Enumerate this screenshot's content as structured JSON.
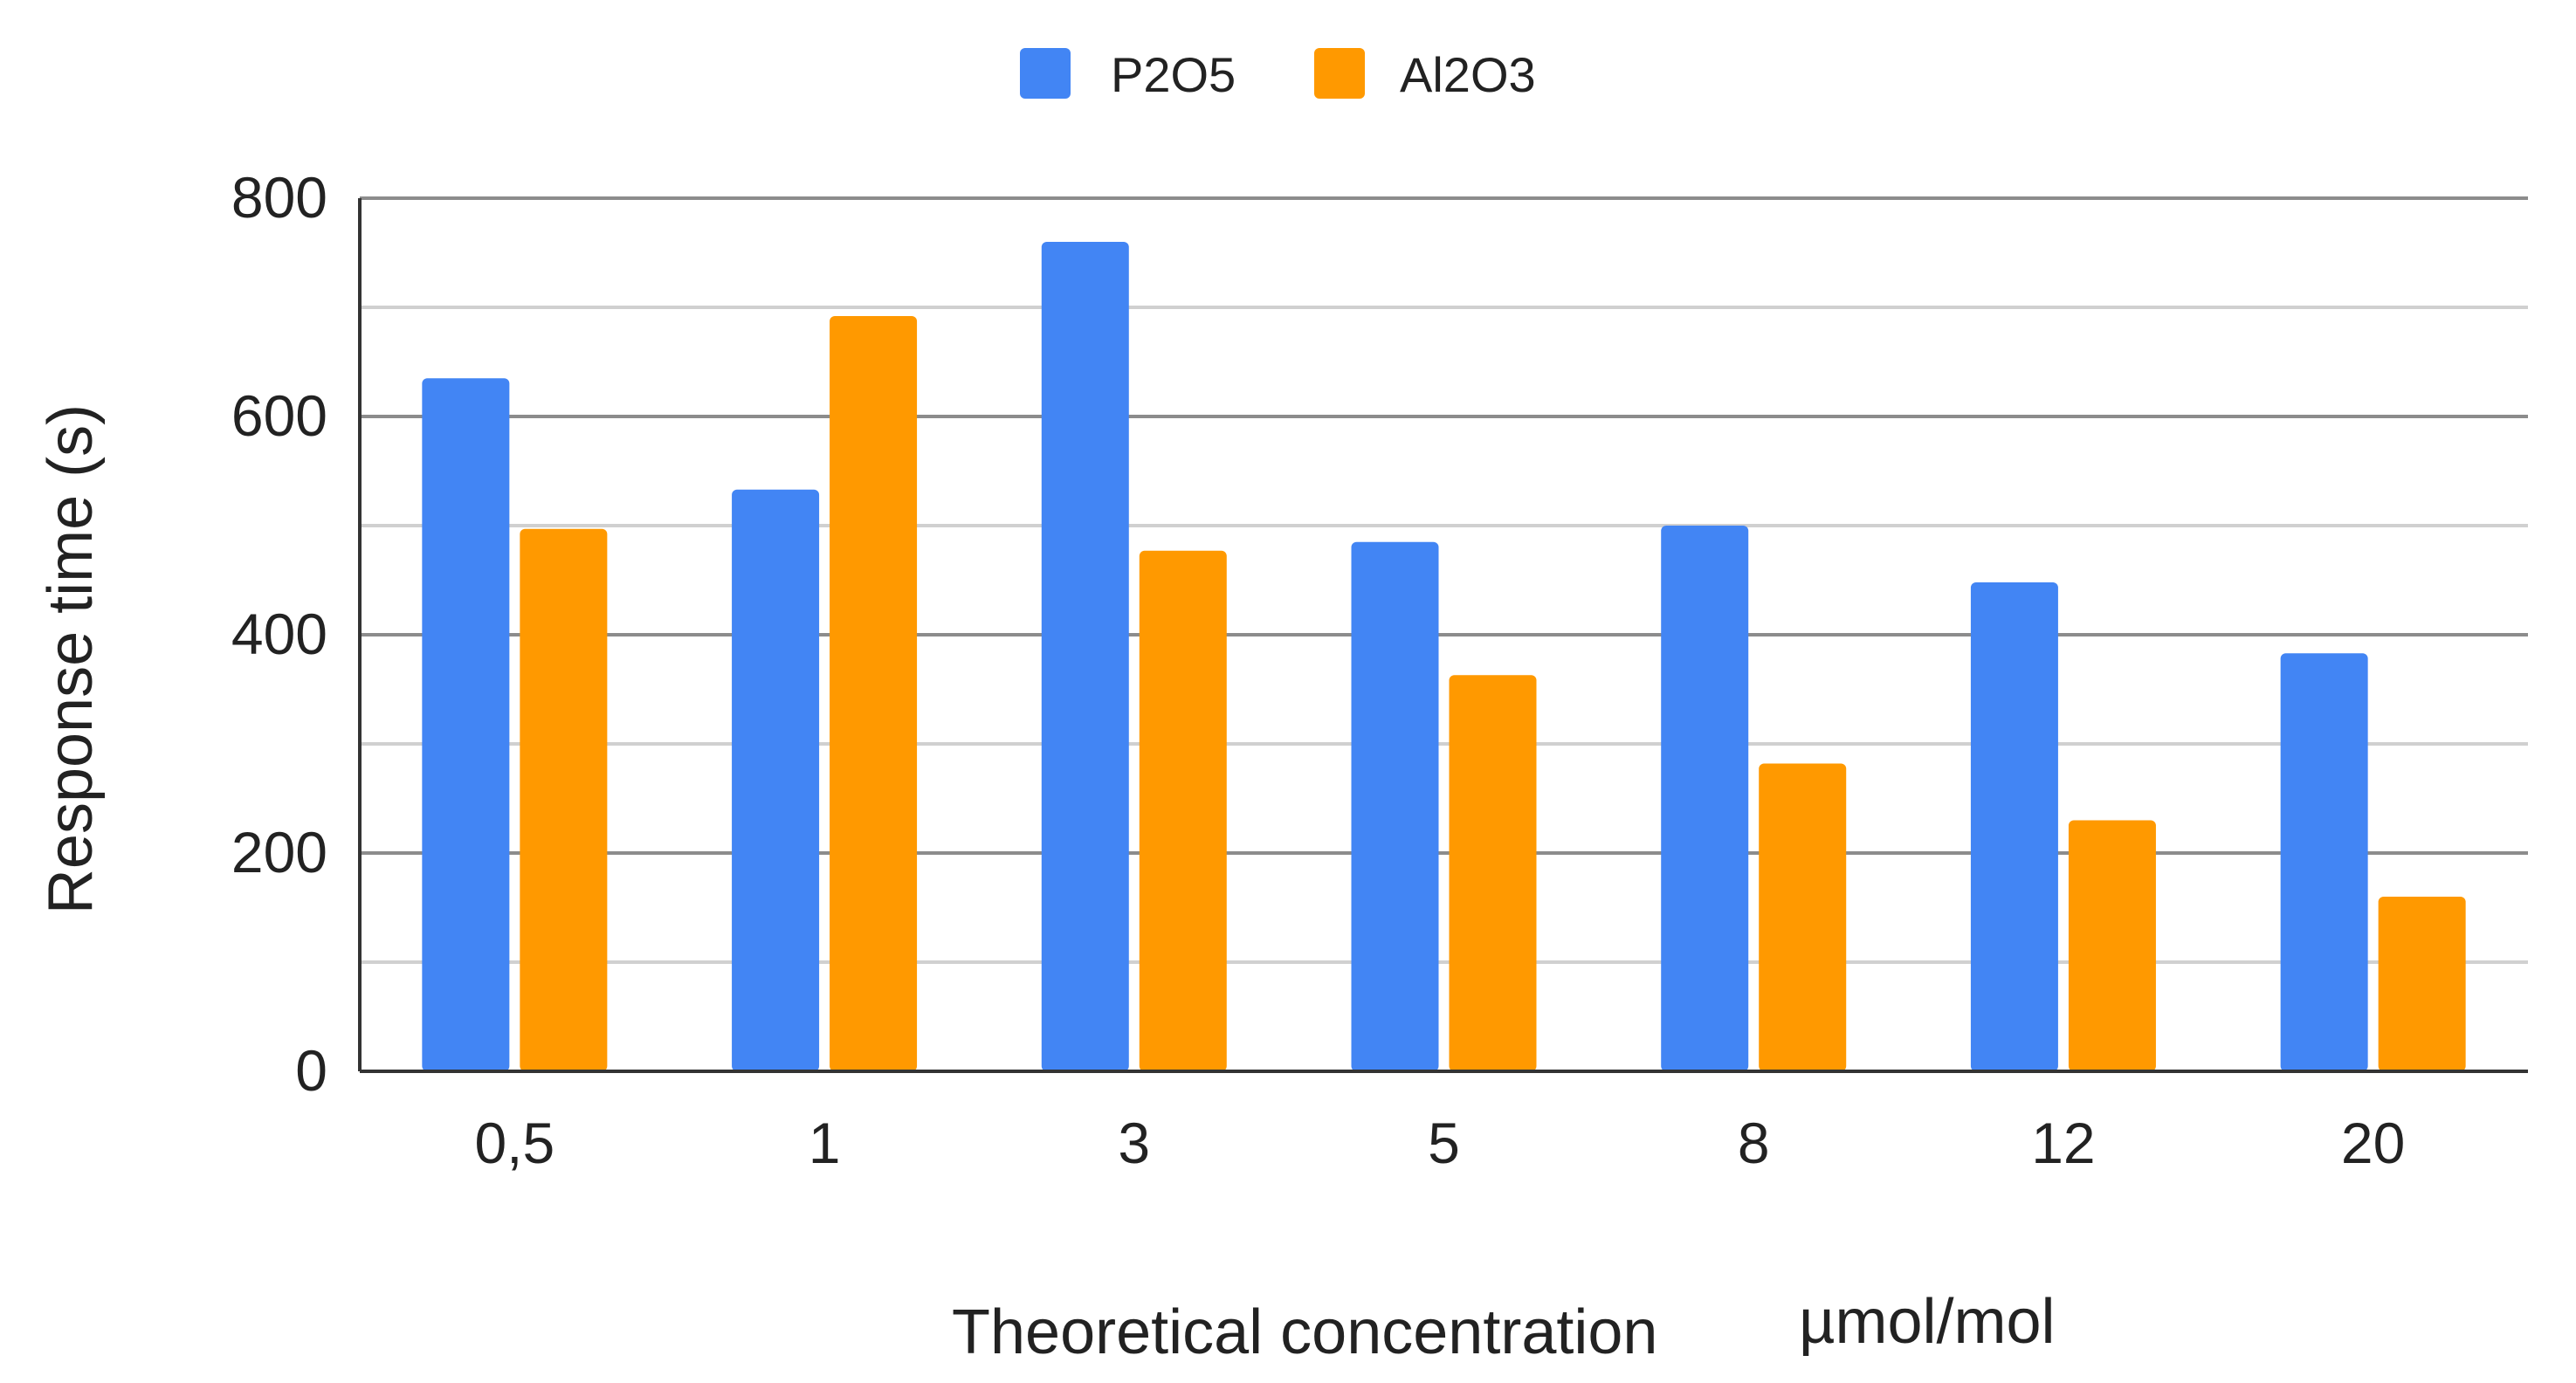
{
  "chart_data": {
    "type": "bar",
    "title": "",
    "categories": [
      "0,5",
      "1",
      "3",
      "5",
      "8",
      "12",
      "20"
    ],
    "series": [
      {
        "name": "P2O5",
        "color": "#4285F4",
        "values": [
          635,
          533,
          760,
          485,
          500,
          448,
          383
        ]
      },
      {
        "name": "Al2O3",
        "color": "#FF9900",
        "values": [
          497,
          692,
          477,
          363,
          282,
          230,
          160
        ]
      }
    ],
    "xlabel": "Theoretical concentration",
    "xlabel_unit": "µmol/mol",
    "ylabel": "Response time (s)",
    "ylim": [
      0,
      800
    ],
    "y_ticks": [
      0,
      200,
      400,
      600,
      800
    ],
    "y_minor_ticks": [
      100,
      300,
      500,
      700
    ],
    "grid": true,
    "legend_position": "top-center"
  }
}
